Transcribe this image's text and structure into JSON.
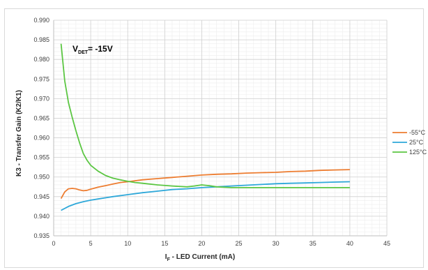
{
  "chart_data": {
    "type": "line",
    "title": "",
    "annotation": {
      "main": "V",
      "sub": "DET",
      "tail": "= -15V"
    },
    "xlabel": {
      "main": "I",
      "sub": "F",
      "tail": " - LED Current (mA)"
    },
    "ylabel": "K3 - Transfer Gain (K2/K1)",
    "xlim": [
      0,
      45
    ],
    "ylim": [
      0.935,
      0.99
    ],
    "xticks": [
      "0",
      "5",
      "10",
      "15",
      "20",
      "25",
      "30",
      "35",
      "40",
      "45"
    ],
    "yticks": [
      "0.935",
      "0.940",
      "0.945",
      "0.950",
      "0.955",
      "0.960",
      "0.965",
      "0.970",
      "0.975",
      "0.980",
      "0.985",
      "0.990"
    ],
    "grid": true,
    "legend_position": "right",
    "series": [
      {
        "name": "-55°C",
        "color": "#ed7d31",
        "x": [
          1,
          1.5,
          2,
          2.5,
          3,
          3.5,
          4,
          4.5,
          5,
          6,
          7,
          8,
          9,
          10,
          12,
          14,
          16,
          18,
          20,
          22,
          24,
          26,
          28,
          30,
          32,
          34,
          36,
          38,
          40
        ],
        "y": [
          0.9445,
          0.9462,
          0.947,
          0.9471,
          0.947,
          0.9467,
          0.9465,
          0.9466,
          0.9469,
          0.9474,
          0.9478,
          0.9482,
          0.9486,
          0.9488,
          0.9493,
          0.9496,
          0.9499,
          0.9502,
          0.9505,
          0.9507,
          0.9508,
          0.951,
          0.9511,
          0.9512,
          0.9514,
          0.9515,
          0.9517,
          0.9518,
          0.9519
        ]
      },
      {
        "name": "25°C",
        "color": "#2ea8d9",
        "x": [
          1,
          2,
          3,
          4,
          5,
          6,
          7,
          8,
          10,
          12,
          14,
          16,
          18,
          20,
          22,
          24,
          26,
          28,
          30,
          32,
          34,
          36,
          38,
          40
        ],
        "y": [
          0.9415,
          0.9425,
          0.9432,
          0.9437,
          0.9441,
          0.9444,
          0.9447,
          0.945,
          0.9455,
          0.946,
          0.9464,
          0.9468,
          0.947,
          0.9473,
          0.9475,
          0.9477,
          0.9479,
          0.9481,
          0.9483,
          0.9484,
          0.9485,
          0.9486,
          0.9487,
          0.9488
        ]
      },
      {
        "name": "125°C",
        "color": "#5bc642",
        "x": [
          1,
          1.5,
          2,
          2.5,
          3,
          3.5,
          4,
          4.5,
          5,
          6,
          7,
          8,
          9,
          10,
          11,
          12,
          14,
          16,
          18,
          19,
          20,
          21,
          22,
          24,
          26,
          28,
          30,
          32,
          34,
          36,
          38,
          40
        ],
        "y": [
          0.984,
          0.9745,
          0.969,
          0.9652,
          0.9618,
          0.9587,
          0.956,
          0.9543,
          0.953,
          0.9515,
          0.9504,
          0.9497,
          0.9493,
          0.9489,
          0.9486,
          0.9484,
          0.948,
          0.9477,
          0.9475,
          0.9477,
          0.948,
          0.9478,
          0.9475,
          0.9473,
          0.9473,
          0.9473,
          0.9473,
          0.9473,
          0.9473,
          0.9473,
          0.9473,
          0.9473
        ]
      }
    ]
  }
}
